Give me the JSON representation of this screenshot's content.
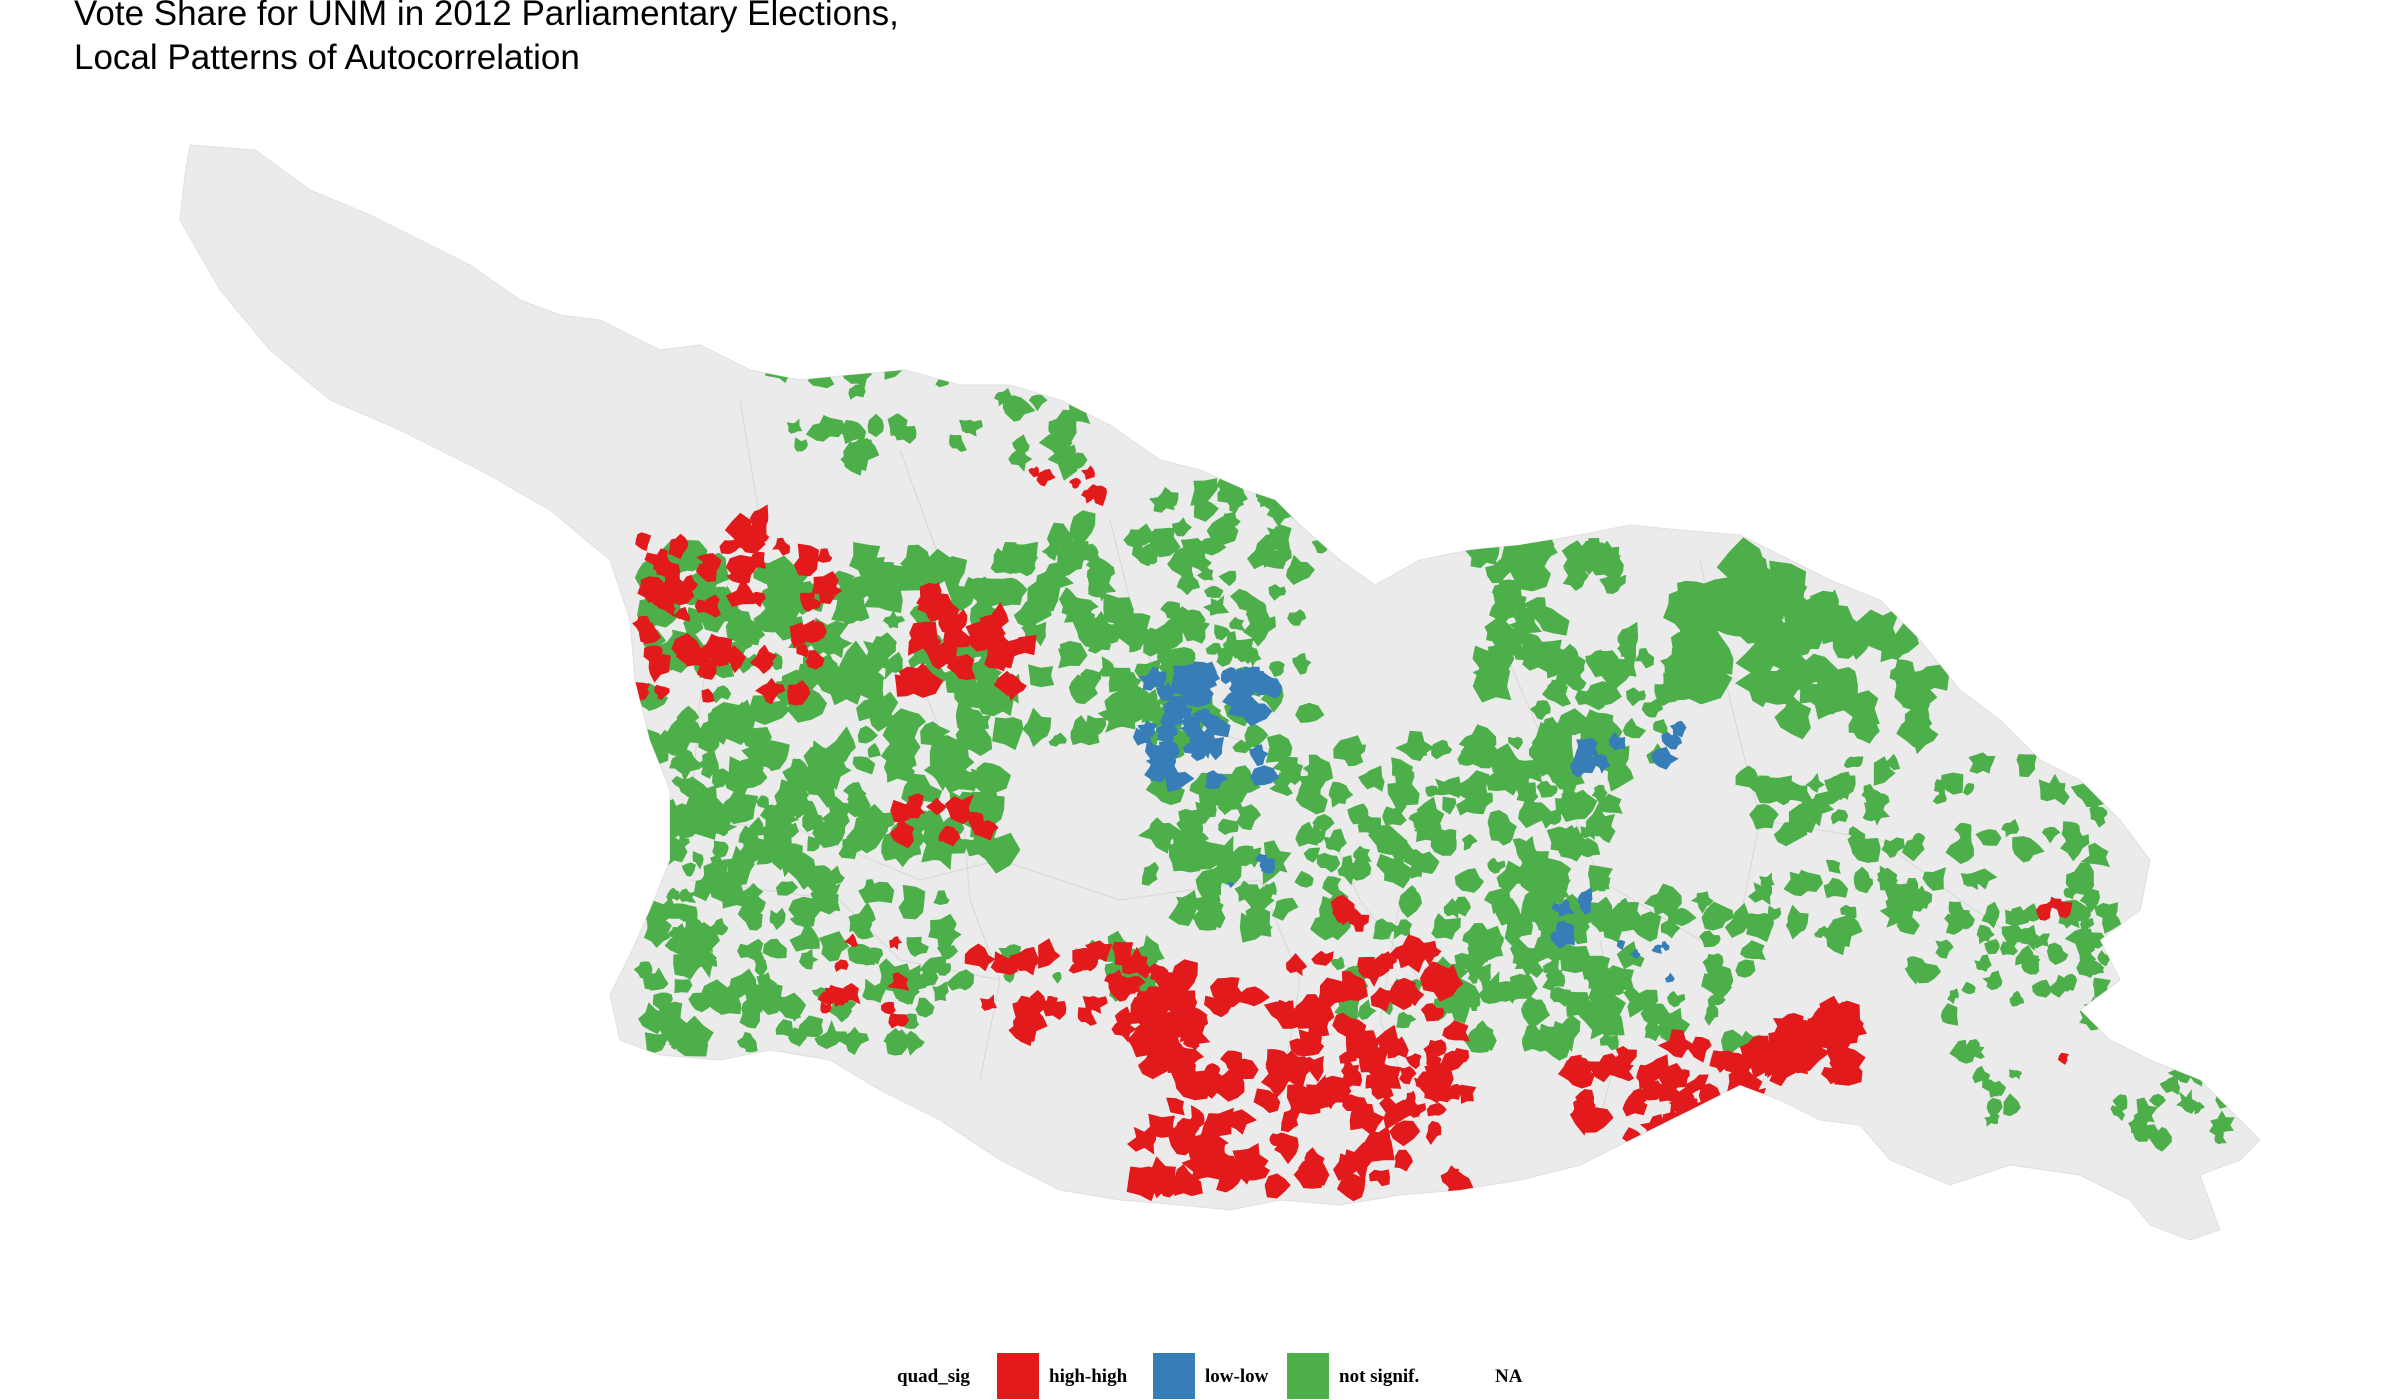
{
  "title": {
    "line1": "Vote Share for UNM in 2012 Parliamentary Elections,",
    "line2": "Local Patterns of Autocorrelation"
  },
  "legend": {
    "title": "quad_sig",
    "items": [
      {
        "label": "high-high",
        "color": "#e31a1c"
      },
      {
        "label": "low-low",
        "color": "#377eb8"
      },
      {
        "label": "not signif.",
        "color": "#4daf4a"
      },
      {
        "label": "NA",
        "color": "#ffffff"
      }
    ]
  },
  "map": {
    "background_color": "#ebebeb",
    "na_fill_color": "#ebebeb",
    "border_color": "#d9d9d9"
  }
}
